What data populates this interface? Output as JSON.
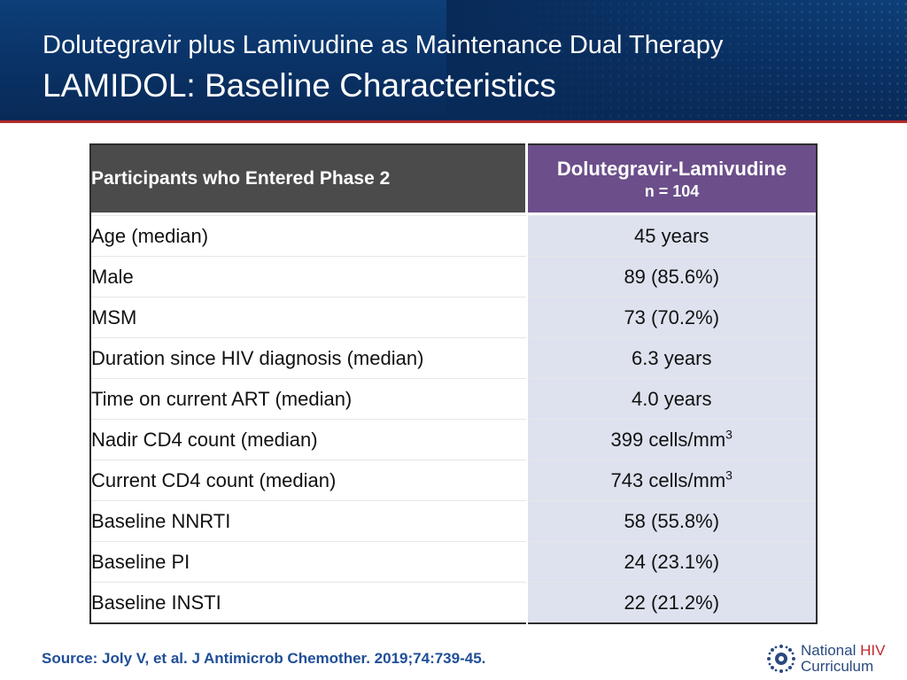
{
  "header": {
    "subtitle": "Dolutegravir plus Lamivudine as Maintenance Dual Therapy",
    "title": "LAMIDOL: Baseline Characteristics"
  },
  "table": {
    "col1_header": "Participants who Entered Phase 2",
    "col2_header": "Dolutegravir-Lamivudine",
    "col2_subheader": "n = 104",
    "rows": [
      {
        "label": "Age (median)",
        "value": "45 years"
      },
      {
        "label": "Male",
        "value": "89 (85.6%)"
      },
      {
        "label": "MSM",
        "value": "73 (70.2%)"
      },
      {
        "label": "Duration since HIV diagnosis (median)",
        "value": "6.3 years"
      },
      {
        "label": "Time on current ART (median)",
        "value": "4.0 years"
      },
      {
        "label": "Nadir CD4 count (median)",
        "value": "399 cells/mm",
        "sup": "3"
      },
      {
        "label": "Current CD4 count (median)",
        "value": "743 cells/mm",
        "sup": "3"
      },
      {
        "label": "Baseline NNRTI",
        "value": "58 (55.8%)"
      },
      {
        "label": "Baseline PI",
        "value": "24 (23.1%)"
      },
      {
        "label": "Baseline INSTI",
        "value": "22 (21.2%)"
      }
    ]
  },
  "footer": {
    "source": "Source: Joly V, et al. J Antimicrob Chemother.  2019;74:739-45."
  },
  "logo": {
    "line1": "National",
    "hiv": "HIV",
    "line2": "Curriculum",
    "icon": "sunburst-logo-icon"
  },
  "colors": {
    "header_bg": "#0a3266",
    "accent_rule": "#b52a2a",
    "col1_header_bg": "#4b4b4b",
    "col2_header_bg": "#6c4f8a",
    "value_cell_bg": "#dde2ee",
    "source_text": "#1f4e97",
    "logo_hiv": "#c3262c"
  }
}
